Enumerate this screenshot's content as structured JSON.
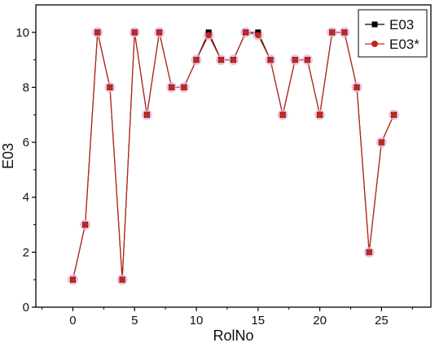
{
  "chart_data": {
    "type": "line",
    "title": "",
    "xlabel": "RolNo",
    "ylabel": "E03",
    "xlim": [
      -3,
      29
    ],
    "ylim": [
      0,
      11
    ],
    "xticks": [
      0,
      5,
      10,
      15,
      20,
      25
    ],
    "yticks": [
      0,
      2,
      4,
      6,
      8,
      10
    ],
    "grid": false,
    "legend": "top-right",
    "x": [
      0,
      1,
      2,
      3,
      4,
      5,
      6,
      7,
      8,
      9,
      10,
      11,
      12,
      13,
      14,
      15,
      16,
      17,
      18,
      19,
      20,
      21,
      22,
      23,
      24,
      25,
      26
    ],
    "series": [
      {
        "name": "E03",
        "color": "#000000",
        "marker": "square",
        "values": [
          1,
          3,
          10,
          8,
          1,
          10,
          7,
          10,
          8,
          8,
          9,
          10,
          9,
          9,
          10,
          10,
          9,
          7,
          9,
          9,
          7,
          10,
          10,
          8,
          2,
          6,
          7
        ]
      },
      {
        "name": "E03*",
        "color": "#c0281c",
        "marker": "circle",
        "values": [
          1,
          3,
          10,
          8,
          1,
          10,
          7,
          10,
          8,
          8,
          9,
          9.9,
          9,
          9,
          10,
          9.9,
          9,
          7,
          9,
          9,
          7,
          10,
          10,
          8,
          2,
          6,
          7
        ]
      }
    ]
  }
}
